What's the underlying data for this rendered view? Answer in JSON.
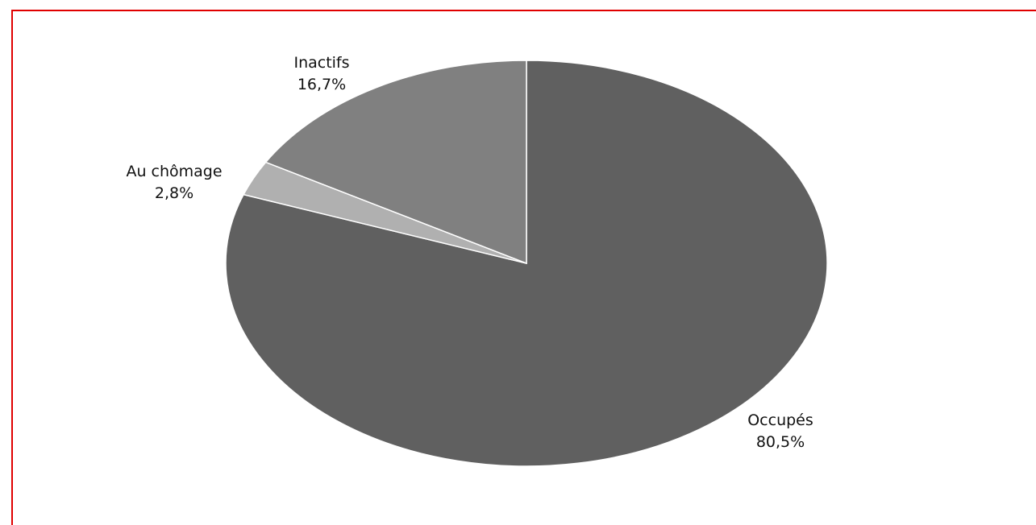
{
  "chart_data": {
    "type": "pie",
    "title": "",
    "slices": [
      {
        "label": "Occupés",
        "value": 80.5,
        "value_label": "80,5%",
        "color": "#606060"
      },
      {
        "label": "Au chômage",
        "value": 2.8,
        "value_label": "2,8%",
        "color": "#b0b0b0"
      },
      {
        "label": "Inactifs",
        "value": 16.7,
        "value_label": "16,7%",
        "color": "#808080"
      }
    ],
    "start_angle": "12 o'clock",
    "direction": "clockwise",
    "legend": "none",
    "slice_border_color": "#ffffff"
  }
}
